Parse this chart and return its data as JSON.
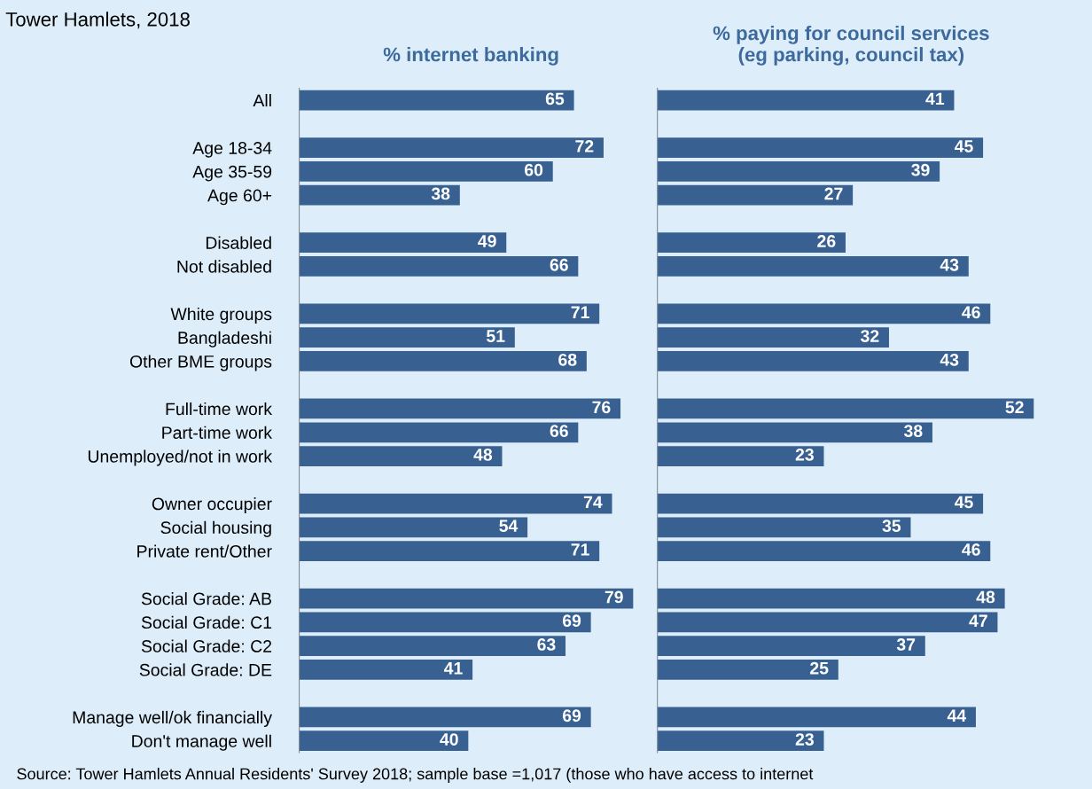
{
  "chart_data": [
    {
      "type": "bar",
      "orientation": "horizontal",
      "title": "% internet banking",
      "data_labels": true,
      "tick_labels": "y",
      "grid": false,
      "legend": false,
      "categories": [
        "All",
        null,
        "Age 18-34",
        "Age 35-59",
        "Age 60+",
        null,
        "Disabled",
        "Not disabled",
        null,
        "White groups",
        "Bangladeshi",
        "Other BME groups",
        null,
        "Full-time work",
        "Part-time work",
        "Unemployed/not in work",
        null,
        "Owner occupier",
        "Social housing",
        "Private rent/Other",
        null,
        "Social Grade: AB",
        "Social Grade: C1",
        "Social Grade: C2",
        "Social Grade: DE",
        null,
        "Manage well/ok financially",
        "Don't manage well"
      ],
      "series": [
        {
          "color": "#386192",
          "values": [
            65,
            null,
            72,
            60,
            38,
            null,
            49,
            66,
            null,
            71,
            51,
            68,
            null,
            76,
            66,
            48,
            null,
            74,
            54,
            71,
            null,
            79,
            69,
            63,
            41,
            null,
            69,
            40
          ]
        }
      ],
      "annotations": [
        "Tower Hamlets, 2018"
      ]
    },
    {
      "type": "bar",
      "orientation": "horizontal",
      "title": "% paying for council services\n(eg parking, council tax)",
      "data_labels": true,
      "grid": false,
      "legend": false,
      "categories": [
        null,
        null,
        null,
        null,
        null,
        null,
        null,
        null,
        null,
        null,
        null,
        null,
        null,
        null,
        null,
        null,
        null,
        null,
        null,
        null,
        null,
        null,
        null,
        null,
        null,
        null,
        null,
        null
      ],
      "series": [
        {
          "color": "#386192",
          "values": [
            41,
            null,
            45,
            39,
            27,
            null,
            26,
            43,
            null,
            46,
            32,
            43,
            null,
            52,
            38,
            23,
            null,
            45,
            35,
            46,
            null,
            48,
            47,
            37,
            25,
            null,
            44,
            23
          ]
        }
      ],
      "annotations": [
        "Source: Tower Hamlets Annual Residents' Survey 2018; sample base =1,017 (those who have access to internet"
      ]
    }
  ]
}
